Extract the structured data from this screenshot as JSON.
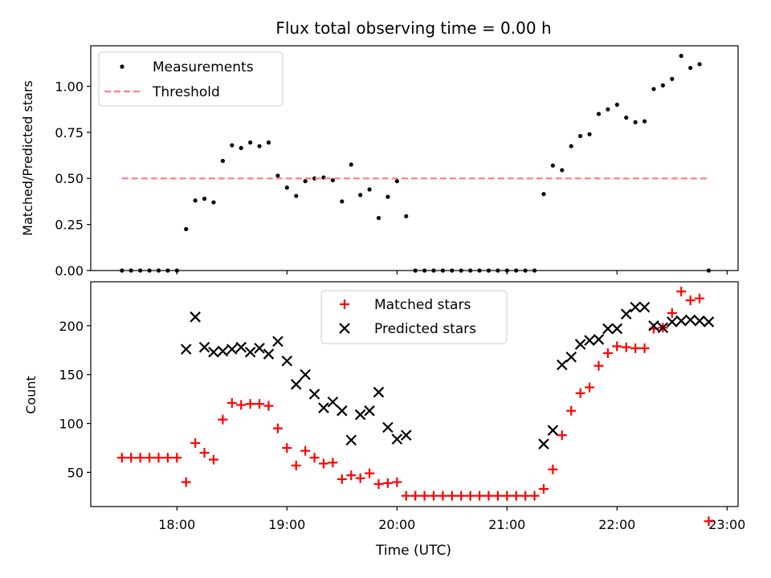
{
  "chart_data": [
    {
      "type": "scatter",
      "title": "Flux total observing time = 0.00 h",
      "xlabel": "",
      "ylabel": "Matched/Predicted stars",
      "ylim": [
        0,
        1.22
      ],
      "yticks": [
        "0.00",
        "0.25",
        "0.50",
        "0.75",
        "1.00"
      ],
      "ytick_values": [
        0,
        0.25,
        0.5,
        0.75,
        1.0
      ],
      "legend_position": "upper-left",
      "series": [
        {
          "name": "Measurements",
          "marker": "dot",
          "color": "#000000",
          "x": [
            "17:30",
            "17:35",
            "17:40",
            "17:45",
            "17:50",
            "17:55",
            "18:00",
            "18:05",
            "18:10",
            "18:15",
            "18:20",
            "18:25",
            "18:30",
            "18:35",
            "18:40",
            "18:45",
            "18:50",
            "18:55",
            "19:00",
            "19:05",
            "19:10",
            "19:15",
            "19:20",
            "19:25",
            "19:30",
            "19:35",
            "19:40",
            "19:45",
            "19:50",
            "19:55",
            "20:00",
            "20:05",
            "20:10",
            "20:15",
            "20:20",
            "20:25",
            "20:30",
            "20:35",
            "20:40",
            "20:45",
            "20:50",
            "20:55",
            "21:00",
            "21:05",
            "21:10",
            "21:15",
            "21:20",
            "21:25",
            "21:30",
            "21:35",
            "21:40",
            "21:45",
            "21:50",
            "21:55",
            "22:00",
            "22:05",
            "22:10",
            "22:15",
            "22:20",
            "22:25",
            "22:30",
            "22:35",
            "22:40",
            "22:45",
            "22:50"
          ],
          "values": [
            0,
            0,
            0,
            0,
            0,
            0,
            0,
            0.225,
            0.38,
            0.39,
            0.37,
            0.595,
            0.68,
            0.665,
            0.695,
            0.675,
            0.695,
            0.515,
            0.45,
            0.405,
            0.485,
            0.5,
            0.505,
            0.49,
            0.375,
            0.575,
            0.41,
            0.44,
            0.285,
            0.4,
            0.485,
            0.295,
            0,
            0,
            0,
            0,
            0,
            0,
            0,
            0,
            0,
            0,
            0,
            0,
            0,
            0,
            0.415,
            0.57,
            0.545,
            0.675,
            0.73,
            0.74,
            0.85,
            0.875,
            0.9,
            0.83,
            0.805,
            0.81,
            0.985,
            1.005,
            1.04,
            1.165,
            1.1,
            1.12,
            0
          ]
        },
        {
          "name": "Threshold",
          "style": "dashed",
          "color": "#ff8080",
          "x": [
            "17:30",
            "22:50"
          ],
          "values": [
            0.5,
            0.5
          ]
        }
      ]
    },
    {
      "type": "scatter",
      "title": "",
      "xlabel": "Time (UTC)",
      "ylabel": "Count",
      "ylim": [
        15,
        245
      ],
      "yticks": [
        "50",
        "100",
        "150",
        "200"
      ],
      "ytick_values": [
        50,
        100,
        150,
        200
      ],
      "xlim": [
        "17:13",
        "23:06"
      ],
      "xticks": [
        "18:00",
        "19:00",
        "20:00",
        "21:00",
        "22:00",
        "23:00"
      ],
      "legend_position": "upper-center",
      "series": [
        {
          "name": "Matched stars",
          "marker": "plus",
          "color": "#ff0000",
          "x": [
            "17:30",
            "17:35",
            "17:40",
            "17:45",
            "17:50",
            "17:55",
            "18:00",
            "18:05",
            "18:10",
            "18:15",
            "18:20",
            "18:25",
            "18:30",
            "18:35",
            "18:40",
            "18:45",
            "18:50",
            "18:55",
            "19:00",
            "19:05",
            "19:10",
            "19:15",
            "19:20",
            "19:25",
            "19:30",
            "19:35",
            "19:40",
            "19:45",
            "19:50",
            "19:55",
            "20:00",
            "20:05",
            "20:10",
            "20:15",
            "20:20",
            "20:25",
            "20:30",
            "20:35",
            "20:40",
            "20:45",
            "20:50",
            "20:55",
            "21:00",
            "21:05",
            "21:10",
            "21:15",
            "21:20",
            "21:25",
            "21:30",
            "21:35",
            "21:40",
            "21:45",
            "21:50",
            "21:55",
            "22:00",
            "22:05",
            "22:10",
            "22:15",
            "22:20",
            "22:25",
            "22:30",
            "22:35",
            "22:40",
            "22:45",
            "22:50"
          ],
          "values": [
            65,
            65,
            65,
            65,
            65,
            65,
            65,
            40,
            80,
            70,
            63,
            104,
            121,
            119,
            120,
            120,
            118,
            95,
            75,
            57,
            72,
            65,
            59,
            60,
            43,
            47,
            44,
            49,
            38,
            39,
            40,
            26,
            26,
            26,
            26,
            26,
            26,
            26,
            26,
            26,
            26,
            26,
            26,
            26,
            26,
            26,
            33,
            53,
            88,
            113,
            131,
            137,
            159,
            172,
            179,
            178,
            177,
            177,
            197,
            198,
            213,
            235,
            226,
            228,
            0
          ]
        },
        {
          "name": "Predicted stars",
          "marker": "x",
          "color": "#000000",
          "x": [
            "18:05",
            "18:10",
            "18:15",
            "18:20",
            "18:25",
            "18:30",
            "18:35",
            "18:40",
            "18:45",
            "18:50",
            "18:55",
            "19:00",
            "19:05",
            "19:10",
            "19:15",
            "19:20",
            "19:25",
            "19:30",
            "19:35",
            "19:40",
            "19:45",
            "19:50",
            "19:55",
            "20:00",
            "20:05",
            "21:20",
            "21:25",
            "21:30",
            "21:35",
            "21:40",
            "21:45",
            "21:50",
            "21:55",
            "22:00",
            "22:05",
            "22:10",
            "22:15",
            "22:20",
            "22:25",
            "22:30",
            "22:35",
            "22:40",
            "22:45",
            "22:50"
          ],
          "values": [
            176,
            209,
            178,
            173,
            174,
            176,
            178,
            173,
            177,
            171,
            184,
            164,
            140,
            150,
            130,
            116,
            122,
            113,
            83,
            109,
            113,
            132,
            96,
            84,
            88,
            79,
            93,
            160,
            168,
            181,
            185,
            186,
            197,
            197,
            212,
            219,
            219,
            200,
            198,
            204,
            205,
            206,
            205,
            204
          ]
        }
      ]
    }
  ]
}
